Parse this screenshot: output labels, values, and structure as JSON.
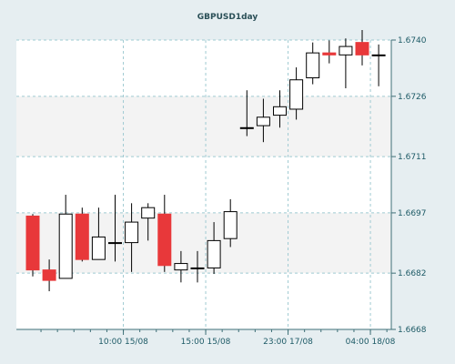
{
  "chart_data": {
    "type": "candlestick",
    "title": "GBPUSD1day",
    "ylim": [
      1.6668,
      1.674
    ],
    "y_ticks": [
      "1.6740",
      "1.6726",
      "1.6711",
      "1.6697",
      "1.6682",
      "1.6668"
    ],
    "x_ticks": [
      {
        "label": "10:00 15/08",
        "index": 5.5
      },
      {
        "label": "15:00 15/08",
        "index": 10.5
      },
      {
        "label": "23:00 17/08",
        "index": 15.5
      },
      {
        "label": "04:00 18/08",
        "index": 20.5
      }
    ],
    "colors": {
      "bullish": "#ffffff",
      "bearish": "#e8383a",
      "wick": "#000000",
      "plot_band": "#ffffff"
    },
    "candles": [
      {
        "open": 1.66962,
        "high": 1.66967,
        "low": 1.66812,
        "close": 1.66828
      },
      {
        "open": 1.66828,
        "high": 1.66854,
        "low": 1.66775,
        "close": 1.66802
      },
      {
        "open": 1.66807,
        "high": 1.67015,
        "low": 1.66807,
        "close": 1.66967
      },
      {
        "open": 1.66967,
        "high": 1.66983,
        "low": 1.66849,
        "close": 1.66854
      },
      {
        "open": 1.66854,
        "high": 1.66983,
        "low": 1.66854,
        "close": 1.6691
      },
      {
        "open": 1.66896,
        "high": 1.67015,
        "low": 1.66849,
        "close": 1.66896
      },
      {
        "open": 1.66896,
        "high": 1.66994,
        "low": 1.66823,
        "close": 1.66947
      },
      {
        "open": 1.66957,
        "high": 1.66994,
        "low": 1.66901,
        "close": 1.66983
      },
      {
        "open": 1.66967,
        "high": 1.67015,
        "low": 1.66823,
        "close": 1.66839
      },
      {
        "open": 1.66828,
        "high": 1.66875,
        "low": 1.66797,
        "close": 1.66844
      },
      {
        "open": 1.66833,
        "high": 1.66875,
        "low": 1.66797,
        "close": 1.66833
      },
      {
        "open": 1.66833,
        "high": 1.66947,
        "low": 1.66818,
        "close": 1.66901
      },
      {
        "open": 1.66906,
        "high": 1.67004,
        "low": 1.66885,
        "close": 1.66973
      },
      {
        "open": 1.67182,
        "high": 1.67275,
        "low": 1.67161,
        "close": 1.67182
      },
      {
        "open": 1.67187,
        "high": 1.67254,
        "low": 1.67146,
        "close": 1.67208
      },
      {
        "open": 1.67213,
        "high": 1.67275,
        "low": 1.67182,
        "close": 1.67234
      },
      {
        "open": 1.67228,
        "high": 1.67332,
        "low": 1.67202,
        "close": 1.67301
      },
      {
        "open": 1.67306,
        "high": 1.67394,
        "low": 1.6729,
        "close": 1.67368
      },
      {
        "open": 1.67368,
        "high": 1.67399,
        "low": 1.67342,
        "close": 1.67363
      },
      {
        "open": 1.67363,
        "high": 1.67404,
        "low": 1.6728,
        "close": 1.67384
      },
      {
        "open": 1.67394,
        "high": 1.67425,
        "low": 1.67337,
        "close": 1.67363
      },
      {
        "open": 1.67363,
        "high": 1.67389,
        "low": 1.67285,
        "close": 1.67363
      }
    ]
  }
}
